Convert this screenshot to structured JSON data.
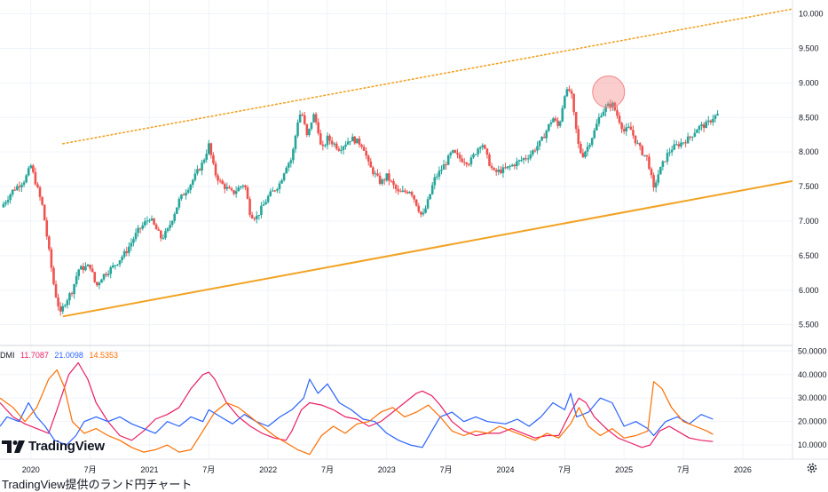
{
  "chart_data": {
    "type": "candlestick",
    "price_axis": {
      "ticks": [
        "5.500",
        "6.000",
        "6.500",
        "7.000",
        "7.500",
        "8.000",
        "8.500",
        "9.000",
        "9.500",
        "10.000"
      ],
      "tick_values": [
        5.5,
        6.0,
        6.5,
        7.0,
        7.5,
        8.0,
        8.5,
        9.0,
        9.5,
        10.0
      ],
      "range": [
        5.2,
        10.2
      ]
    },
    "time_axis": {
      "labels": [
        "2020",
        "7月",
        "2021",
        "7月",
        "2022",
        "7月",
        "2023",
        "7月",
        "2024",
        "7月",
        "2025",
        "7月",
        "2026"
      ],
      "label_times": [
        2020.0,
        2020.5,
        2021.0,
        2021.5,
        2022.0,
        2022.5,
        2023.0,
        2023.5,
        2024.0,
        2024.5,
        2025.0,
        2025.5,
        2026.0
      ],
      "range": [
        2019.74,
        2026.42
      ]
    },
    "price_path": [
      [
        2019.75,
        7.2
      ],
      [
        2019.85,
        7.45
      ],
      [
        2019.95,
        7.6
      ],
      [
        2020.0,
        7.8
      ],
      [
        2020.05,
        7.5
      ],
      [
        2020.1,
        7.2
      ],
      [
        2020.15,
        6.6
      ],
      [
        2020.2,
        6.0
      ],
      [
        2020.25,
        5.65
      ],
      [
        2020.28,
        5.8
      ],
      [
        2020.35,
        6.0
      ],
      [
        2020.4,
        6.3
      ],
      [
        2020.5,
        6.35
      ],
      [
        2020.55,
        6.05
      ],
      [
        2020.6,
        6.2
      ],
      [
        2020.7,
        6.35
      ],
      [
        2020.8,
        6.55
      ],
      [
        2020.9,
        6.85
      ],
      [
        2021.0,
        7.05
      ],
      [
        2021.1,
        6.75
      ],
      [
        2021.15,
        6.85
      ],
      [
        2021.25,
        7.3
      ],
      [
        2021.35,
        7.55
      ],
      [
        2021.45,
        7.85
      ],
      [
        2021.5,
        8.1
      ],
      [
        2021.55,
        7.7
      ],
      [
        2021.6,
        7.55
      ],
      [
        2021.7,
        7.4
      ],
      [
        2021.8,
        7.55
      ],
      [
        2021.85,
        7.1
      ],
      [
        2021.9,
        7.05
      ],
      [
        2022.0,
        7.35
      ],
      [
        2022.1,
        7.55
      ],
      [
        2022.15,
        7.8
      ],
      [
        2022.2,
        7.9
      ],
      [
        2022.25,
        8.45
      ],
      [
        2022.28,
        8.6
      ],
      [
        2022.33,
        8.2
      ],
      [
        2022.38,
        8.55
      ],
      [
        2022.42,
        8.35
      ],
      [
        2022.45,
        8.0
      ],
      [
        2022.5,
        8.2
      ],
      [
        2022.6,
        8.05
      ],
      [
        2022.7,
        8.2
      ],
      [
        2022.8,
        8.1
      ],
      [
        2022.85,
        7.8
      ],
      [
        2022.95,
        7.55
      ],
      [
        2023.0,
        7.65
      ],
      [
        2023.1,
        7.4
      ],
      [
        2023.2,
        7.45
      ],
      [
        2023.3,
        7.05
      ],
      [
        2023.35,
        7.3
      ],
      [
        2023.4,
        7.6
      ],
      [
        2023.5,
        7.85
      ],
      [
        2023.55,
        8.0
      ],
      [
        2023.62,
        7.9
      ],
      [
        2023.7,
        7.85
      ],
      [
        2023.75,
        8.0
      ],
      [
        2023.8,
        8.15
      ],
      [
        2023.85,
        7.9
      ],
      [
        2023.9,
        7.7
      ],
      [
        2024.0,
        7.75
      ],
      [
        2024.1,
        7.85
      ],
      [
        2024.2,
        7.95
      ],
      [
        2024.3,
        8.15
      ],
      [
        2024.4,
        8.5
      ],
      [
        2024.45,
        8.35
      ],
      [
        2024.5,
        8.85
      ],
      [
        2024.55,
        8.9
      ],
      [
        2024.58,
        8.5
      ],
      [
        2024.62,
        8.05
      ],
      [
        2024.65,
        7.95
      ],
      [
        2024.7,
        8.1
      ],
      [
        2024.75,
        8.3
      ],
      [
        2024.8,
        8.55
      ],
      [
        2024.85,
        8.65
      ],
      [
        2024.9,
        8.7
      ],
      [
        2024.95,
        8.5
      ],
      [
        2025.0,
        8.3
      ],
      [
        2025.05,
        8.35
      ],
      [
        2025.1,
        8.15
      ],
      [
        2025.15,
        8.0
      ],
      [
        2025.2,
        7.9
      ],
      [
        2025.25,
        7.45
      ],
      [
        2025.28,
        7.65
      ],
      [
        2025.32,
        7.8
      ],
      [
        2025.36,
        7.95
      ],
      [
        2025.4,
        8.05
      ],
      [
        2025.5,
        8.15
      ],
      [
        2025.55,
        8.2
      ],
      [
        2025.62,
        8.35
      ],
      [
        2025.7,
        8.4
      ],
      [
        2025.75,
        8.5
      ],
      [
        2025.8,
        8.55
      ]
    ],
    "trendlines": [
      {
        "style": "solid",
        "color": "#f2a222",
        "from": [
          2020.27,
          5.62
        ],
        "to": [
          2026.42,
          7.58
        ]
      },
      {
        "style": "dotted",
        "color": "#f2a222",
        "from": [
          2020.27,
          8.12
        ],
        "to": [
          2026.42,
          10.07
        ]
      }
    ],
    "highlight_circle": {
      "center": [
        2024.87,
        8.87
      ],
      "color": "#f48585"
    },
    "colors": {
      "up": "#26a69a",
      "down": "#ef5350",
      "trend": "#f2a222"
    },
    "dmi": {
      "label": "DMI",
      "values": [
        "11.7087",
        "21.0098",
        "14.5353"
      ],
      "colors": [
        "#e91e63",
        "#2962ff",
        "#ff6d00"
      ],
      "axis_ticks": [
        "10.0000",
        "20.0000",
        "30.0000",
        "40.0000",
        "50.0000"
      ],
      "axis_values": [
        10,
        20,
        30,
        40,
        50
      ],
      "range": [
        4,
        52
      ],
      "adx": [
        [
          2019.74,
          28
        ],
        [
          2019.85,
          22
        ],
        [
          2019.95,
          19
        ],
        [
          2020.05,
          17
        ],
        [
          2020.15,
          15
        ],
        [
          2020.22,
          25
        ],
        [
          2020.32,
          40
        ],
        [
          2020.4,
          45
        ],
        [
          2020.48,
          38
        ],
        [
          2020.55,
          28
        ],
        [
          2020.65,
          20
        ],
        [
          2020.75,
          14
        ],
        [
          2020.85,
          12
        ],
        [
          2020.95,
          16
        ],
        [
          2021.05,
          21
        ],
        [
          2021.15,
          23
        ],
        [
          2021.25,
          26
        ],
        [
          2021.35,
          34
        ],
        [
          2021.45,
          40
        ],
        [
          2021.5,
          41
        ],
        [
          2021.55,
          38
        ],
        [
          2021.65,
          28
        ],
        [
          2021.75,
          22
        ],
        [
          2021.85,
          18
        ],
        [
          2021.95,
          15
        ],
        [
          2022.05,
          13
        ],
        [
          2022.15,
          12
        ],
        [
          2022.2,
          16
        ],
        [
          2022.28,
          25
        ],
        [
          2022.35,
          28
        ],
        [
          2022.45,
          27
        ],
        [
          2022.55,
          25
        ],
        [
          2022.65,
          22
        ],
        [
          2022.75,
          21
        ],
        [
          2022.85,
          18
        ],
        [
          2022.95,
          20
        ],
        [
          2023.05,
          24
        ],
        [
          2023.15,
          28
        ],
        [
          2023.25,
          32
        ],
        [
          2023.3,
          33
        ],
        [
          2023.38,
          31
        ],
        [
          2023.45,
          27
        ],
        [
          2023.55,
          20
        ],
        [
          2023.65,
          16
        ],
        [
          2023.75,
          14
        ],
        [
          2023.85,
          15
        ],
        [
          2023.95,
          15
        ],
        [
          2024.05,
          17
        ],
        [
          2024.15,
          15
        ],
        [
          2024.25,
          13
        ],
        [
          2024.35,
          14
        ],
        [
          2024.45,
          14
        ],
        [
          2024.55,
          24
        ],
        [
          2024.62,
          30
        ],
        [
          2024.68,
          28
        ],
        [
          2024.75,
          22
        ],
        [
          2024.85,
          17
        ],
        [
          2024.95,
          13
        ],
        [
          2025.05,
          11
        ],
        [
          2025.15,
          9
        ],
        [
          2025.22,
          10
        ],
        [
          2025.3,
          16
        ],
        [
          2025.38,
          18
        ],
        [
          2025.45,
          16
        ],
        [
          2025.55,
          13
        ],
        [
          2025.65,
          12
        ],
        [
          2025.75,
          11.5
        ]
      ],
      "plus_di": [
        [
          2019.74,
          18
        ],
        [
          2019.8,
          22
        ],
        [
          2019.9,
          20
        ],
        [
          2019.98,
          28
        ],
        [
          2020.05,
          22
        ],
        [
          2020.12,
          18
        ],
        [
          2020.2,
          12
        ],
        [
          2020.3,
          10
        ],
        [
          2020.38,
          14
        ],
        [
          2020.45,
          20
        ],
        [
          2020.55,
          22
        ],
        [
          2020.65,
          20
        ],
        [
          2020.75,
          22
        ],
        [
          2020.85,
          19
        ],
        [
          2020.95,
          17
        ],
        [
          2021.05,
          15
        ],
        [
          2021.15,
          20
        ],
        [
          2021.25,
          18
        ],
        [
          2021.35,
          22
        ],
        [
          2021.45,
          20
        ],
        [
          2021.5,
          25
        ],
        [
          2021.6,
          22
        ],
        [
          2021.7,
          19
        ],
        [
          2021.8,
          23
        ],
        [
          2021.9,
          20
        ],
        [
          2022.0,
          18
        ],
        [
          2022.1,
          22
        ],
        [
          2022.2,
          25
        ],
        [
          2022.3,
          30
        ],
        [
          2022.35,
          38
        ],
        [
          2022.42,
          32
        ],
        [
          2022.5,
          36
        ],
        [
          2022.6,
          28
        ],
        [
          2022.7,
          25
        ],
        [
          2022.8,
          21
        ],
        [
          2022.9,
          20
        ],
        [
          2023.0,
          15
        ],
        [
          2023.1,
          12
        ],
        [
          2023.2,
          10
        ],
        [
          2023.3,
          9
        ],
        [
          2023.38,
          16
        ],
        [
          2023.45,
          22
        ],
        [
          2023.55,
          24
        ],
        [
          2023.65,
          20
        ],
        [
          2023.75,
          22
        ],
        [
          2023.85,
          20
        ],
        [
          2024.0,
          19
        ],
        [
          2024.1,
          21
        ],
        [
          2024.2,
          18
        ],
        [
          2024.3,
          22
        ],
        [
          2024.4,
          28
        ],
        [
          2024.5,
          25
        ],
        [
          2024.55,
          32
        ],
        [
          2024.6,
          22
        ],
        [
          2024.7,
          24
        ],
        [
          2024.8,
          30
        ],
        [
          2024.9,
          28
        ],
        [
          2025.0,
          18
        ],
        [
          2025.1,
          20
        ],
        [
          2025.2,
          17
        ],
        [
          2025.25,
          14
        ],
        [
          2025.35,
          20
        ],
        [
          2025.45,
          22
        ],
        [
          2025.55,
          19
        ],
        [
          2025.65,
          23
        ],
        [
          2025.75,
          21
        ]
      ],
      "minus_di": [
        [
          2019.74,
          30
        ],
        [
          2019.85,
          26
        ],
        [
          2019.95,
          20
        ],
        [
          2020.05,
          26
        ],
        [
          2020.15,
          38
        ],
        [
          2020.22,
          42
        ],
        [
          2020.28,
          35
        ],
        [
          2020.35,
          20
        ],
        [
          2020.45,
          15
        ],
        [
          2020.55,
          17
        ],
        [
          2020.65,
          14
        ],
        [
          2020.75,
          12
        ],
        [
          2020.85,
          9
        ],
        [
          2020.95,
          7
        ],
        [
          2021.05,
          8
        ],
        [
          2021.15,
          10
        ],
        [
          2021.25,
          7
        ],
        [
          2021.35,
          8
        ],
        [
          2021.45,
          16
        ],
        [
          2021.55,
          24
        ],
        [
          2021.65,
          28
        ],
        [
          2021.75,
          26
        ],
        [
          2021.85,
          22
        ],
        [
          2021.95,
          18
        ],
        [
          2022.05,
          14
        ],
        [
          2022.15,
          11
        ],
        [
          2022.25,
          8
        ],
        [
          2022.35,
          6
        ],
        [
          2022.45,
          14
        ],
        [
          2022.55,
          18
        ],
        [
          2022.65,
          15
        ],
        [
          2022.75,
          19
        ],
        [
          2022.85,
          20
        ],
        [
          2022.95,
          24
        ],
        [
          2023.05,
          26
        ],
        [
          2023.15,
          22
        ],
        [
          2023.25,
          24
        ],
        [
          2023.35,
          27
        ],
        [
          2023.45,
          22
        ],
        [
          2023.55,
          16
        ],
        [
          2023.65,
          14
        ],
        [
          2023.75,
          16
        ],
        [
          2023.85,
          15
        ],
        [
          2023.95,
          18
        ],
        [
          2024.05,
          16
        ],
        [
          2024.15,
          14
        ],
        [
          2024.25,
          12
        ],
        [
          2024.35,
          15
        ],
        [
          2024.45,
          13
        ],
        [
          2024.55,
          19
        ],
        [
          2024.62,
          26
        ],
        [
          2024.7,
          18
        ],
        [
          2024.8,
          14
        ],
        [
          2024.9,
          17
        ],
        [
          2025.0,
          13
        ],
        [
          2025.1,
          14
        ],
        [
          2025.2,
          16
        ],
        [
          2025.25,
          37
        ],
        [
          2025.32,
          34
        ],
        [
          2025.4,
          26
        ],
        [
          2025.5,
          20
        ],
        [
          2025.6,
          18
        ],
        [
          2025.7,
          16
        ],
        [
          2025.75,
          14.5
        ]
      ]
    }
  },
  "branding": {
    "logo_text": "TradingView",
    "caption": "TradingView提供のランド円チャート"
  },
  "icons": {
    "logo": "tradingview-logo",
    "settings": "gear-icon"
  }
}
